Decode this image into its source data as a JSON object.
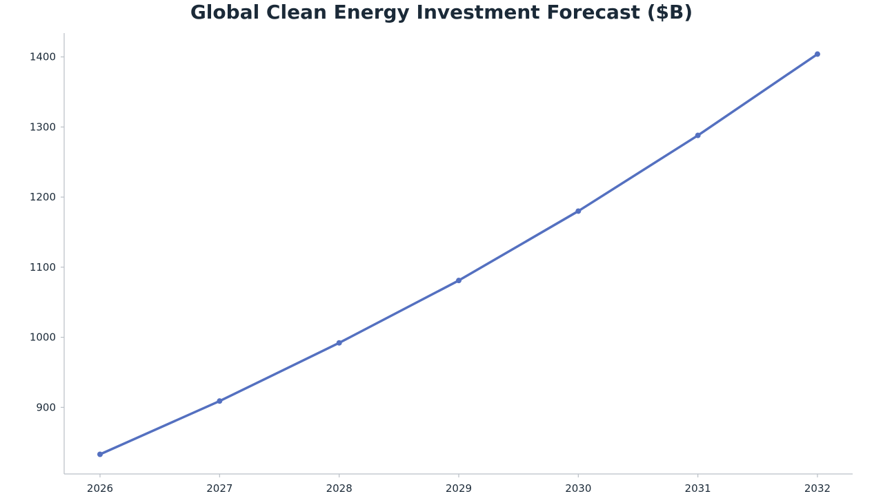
{
  "chart_data": {
    "type": "line",
    "title": "Global Clean Energy Investment Forecast ($B)",
    "xlabel": "",
    "ylabel": "",
    "x": [
      "2026",
      "2027",
      "2028",
      "2029",
      "2030",
      "2031",
      "2032"
    ],
    "series": [
      {
        "values": [
          833,
          909,
          992,
          1081,
          1180,
          1288,
          1404
        ]
      }
    ],
    "yticks": [
      900,
      1000,
      1100,
      1200,
      1300,
      1400
    ],
    "ylim": [
      805,
      1434
    ],
    "grid": false,
    "legend": "none",
    "colors": {
      "line": "#5470c0",
      "axis": "#b9bfc6",
      "text": "#1b2a38"
    }
  }
}
